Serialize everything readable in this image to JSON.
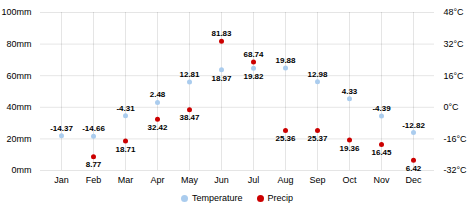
{
  "chart_data": {
    "type": "scatter",
    "categories": [
      "Jan",
      "Feb",
      "Mar",
      "Apr",
      "May",
      "Jun",
      "Jul",
      "Aug",
      "Sep",
      "Oct",
      "Nov",
      "Dec"
    ],
    "series": [
      {
        "name": "Temperature",
        "color": "#aaccee",
        "marker": "circle",
        "axis": "y2",
        "values": [
          -14.37,
          -14.66,
          -4.31,
          2.48,
          12.81,
          18.97,
          19.82,
          19.88,
          12.98,
          4.33,
          -4.39,
          -12.82
        ]
      },
      {
        "name": "Precip",
        "color": "#cc0000",
        "marker": "circle",
        "values": [
          null,
          8.77,
          18.71,
          32.42,
          38.47,
          81.83,
          68.74,
          25.36,
          25.37,
          19.36,
          16.45,
          6.42
        ]
      }
    ],
    "ylim": [
      0,
      100
    ],
    "yticks": [
      {
        "value": 0,
        "label": "0mm"
      },
      {
        "value": 20,
        "label": "20mm"
      },
      {
        "value": 40,
        "label": "40mm"
      },
      {
        "value": 60,
        "label": "60mm"
      },
      {
        "value": 80,
        "label": "80mm"
      },
      {
        "value": 100,
        "label": "100mm"
      }
    ],
    "y2lim": [
      -32,
      48
    ],
    "y2ticks": [
      {
        "value": -32,
        "label": "-32°C"
      },
      {
        "value": -16,
        "label": "-16°C"
      },
      {
        "value": 0,
        "label": "0°C"
      },
      {
        "value": 16,
        "label": "16°C"
      },
      {
        "value": 32,
        "label": "32°C"
      },
      {
        "value": 48,
        "label": "48°C"
      }
    ],
    "grid": true,
    "legend": "bottom",
    "data_labels": true
  }
}
